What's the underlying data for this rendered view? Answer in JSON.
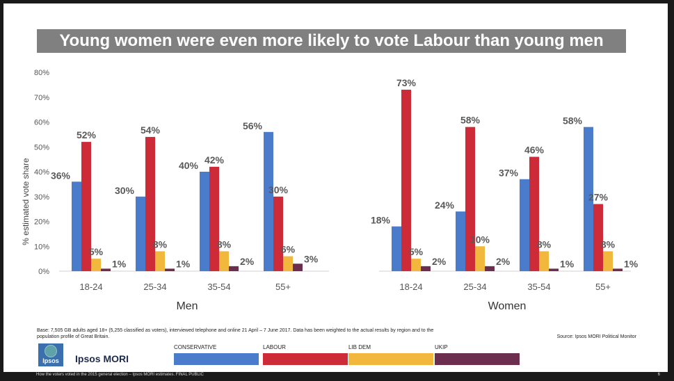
{
  "title": "Young women were even more likely to vote Labour than young men",
  "chart_data": {
    "type": "bar",
    "ylabel": "% estimated vote share",
    "ylim": [
      0,
      80
    ],
    "yticks": [
      "0%",
      "10%",
      "20%",
      "30%",
      "40%",
      "50%",
      "60%",
      "70%",
      "80%"
    ],
    "grid": false,
    "groups": [
      {
        "name": "Men",
        "categories": [
          "18-24",
          "25-34",
          "35-54",
          "55+"
        ],
        "series": [
          {
            "name": "CONSERVATIVE",
            "values": [
              36,
              30,
              40,
              56
            ],
            "labels": [
              "36%",
              "30%",
              "40%",
              "56%"
            ]
          },
          {
            "name": "LABOUR",
            "values": [
              52,
              54,
              42,
              30
            ],
            "labels": [
              "52%",
              "54%",
              "42%",
              "30%"
            ]
          },
          {
            "name": "LIB DEM",
            "values": [
              5,
              8,
              8,
              6
            ],
            "labels": [
              "5%",
              "8%",
              "8%",
              "6%"
            ]
          },
          {
            "name": "UKIP",
            "values": [
              1,
              1,
              2,
              3
            ],
            "labels": [
              "1%",
              "1%",
              "2%",
              "3%"
            ]
          }
        ]
      },
      {
        "name": "Women",
        "categories": [
          "18-24",
          "25-34",
          "35-54",
          "55+"
        ],
        "series": [
          {
            "name": "CONSERVATIVE",
            "values": [
              18,
              24,
              37,
              58
            ],
            "labels": [
              "18%",
              "24%",
              "37%",
              "58%"
            ]
          },
          {
            "name": "LABOUR",
            "values": [
              73,
              58,
              46,
              27
            ],
            "labels": [
              "73%",
              "58%",
              "46%",
              "27%"
            ]
          },
          {
            "name": "LIB DEM",
            "values": [
              5,
              10,
              8,
              8
            ],
            "labels": [
              "5%",
              "10%",
              "8%",
              "8%"
            ]
          },
          {
            "name": "UKIP",
            "values": [
              2,
              2,
              1,
              1
            ],
            "labels": [
              "2%",
              "2%",
              "1%",
              "1%"
            ]
          }
        ]
      }
    ],
    "colors": {
      "CONSERVATIVE": "#4a7ccb",
      "LABOUR": "#cc2b37",
      "LIB DEM": "#f2b83d",
      "UKIP": "#6b2e4f"
    }
  },
  "legend": [
    "CONSERVATIVE",
    "LABOUR",
    "LIB DEM",
    "UKIP"
  ],
  "footnote": "Base: 7,505 GB adults aged 18+ (5,255 classified as voters), interviewed telephone and online 21 April – 7 June 2017. Data has been weighted to the actual results by region and to the population profile of Great Britain.",
  "source": "Source: Ipsos MORI Political Monitor",
  "brand": "Ipsos MORI",
  "logo_text": "Ipsos",
  "bottom_text": "How the voters voted in the 2015 general election – Ipsos MORI estimates.  FINAL PUBLIC",
  "page_number": "6"
}
